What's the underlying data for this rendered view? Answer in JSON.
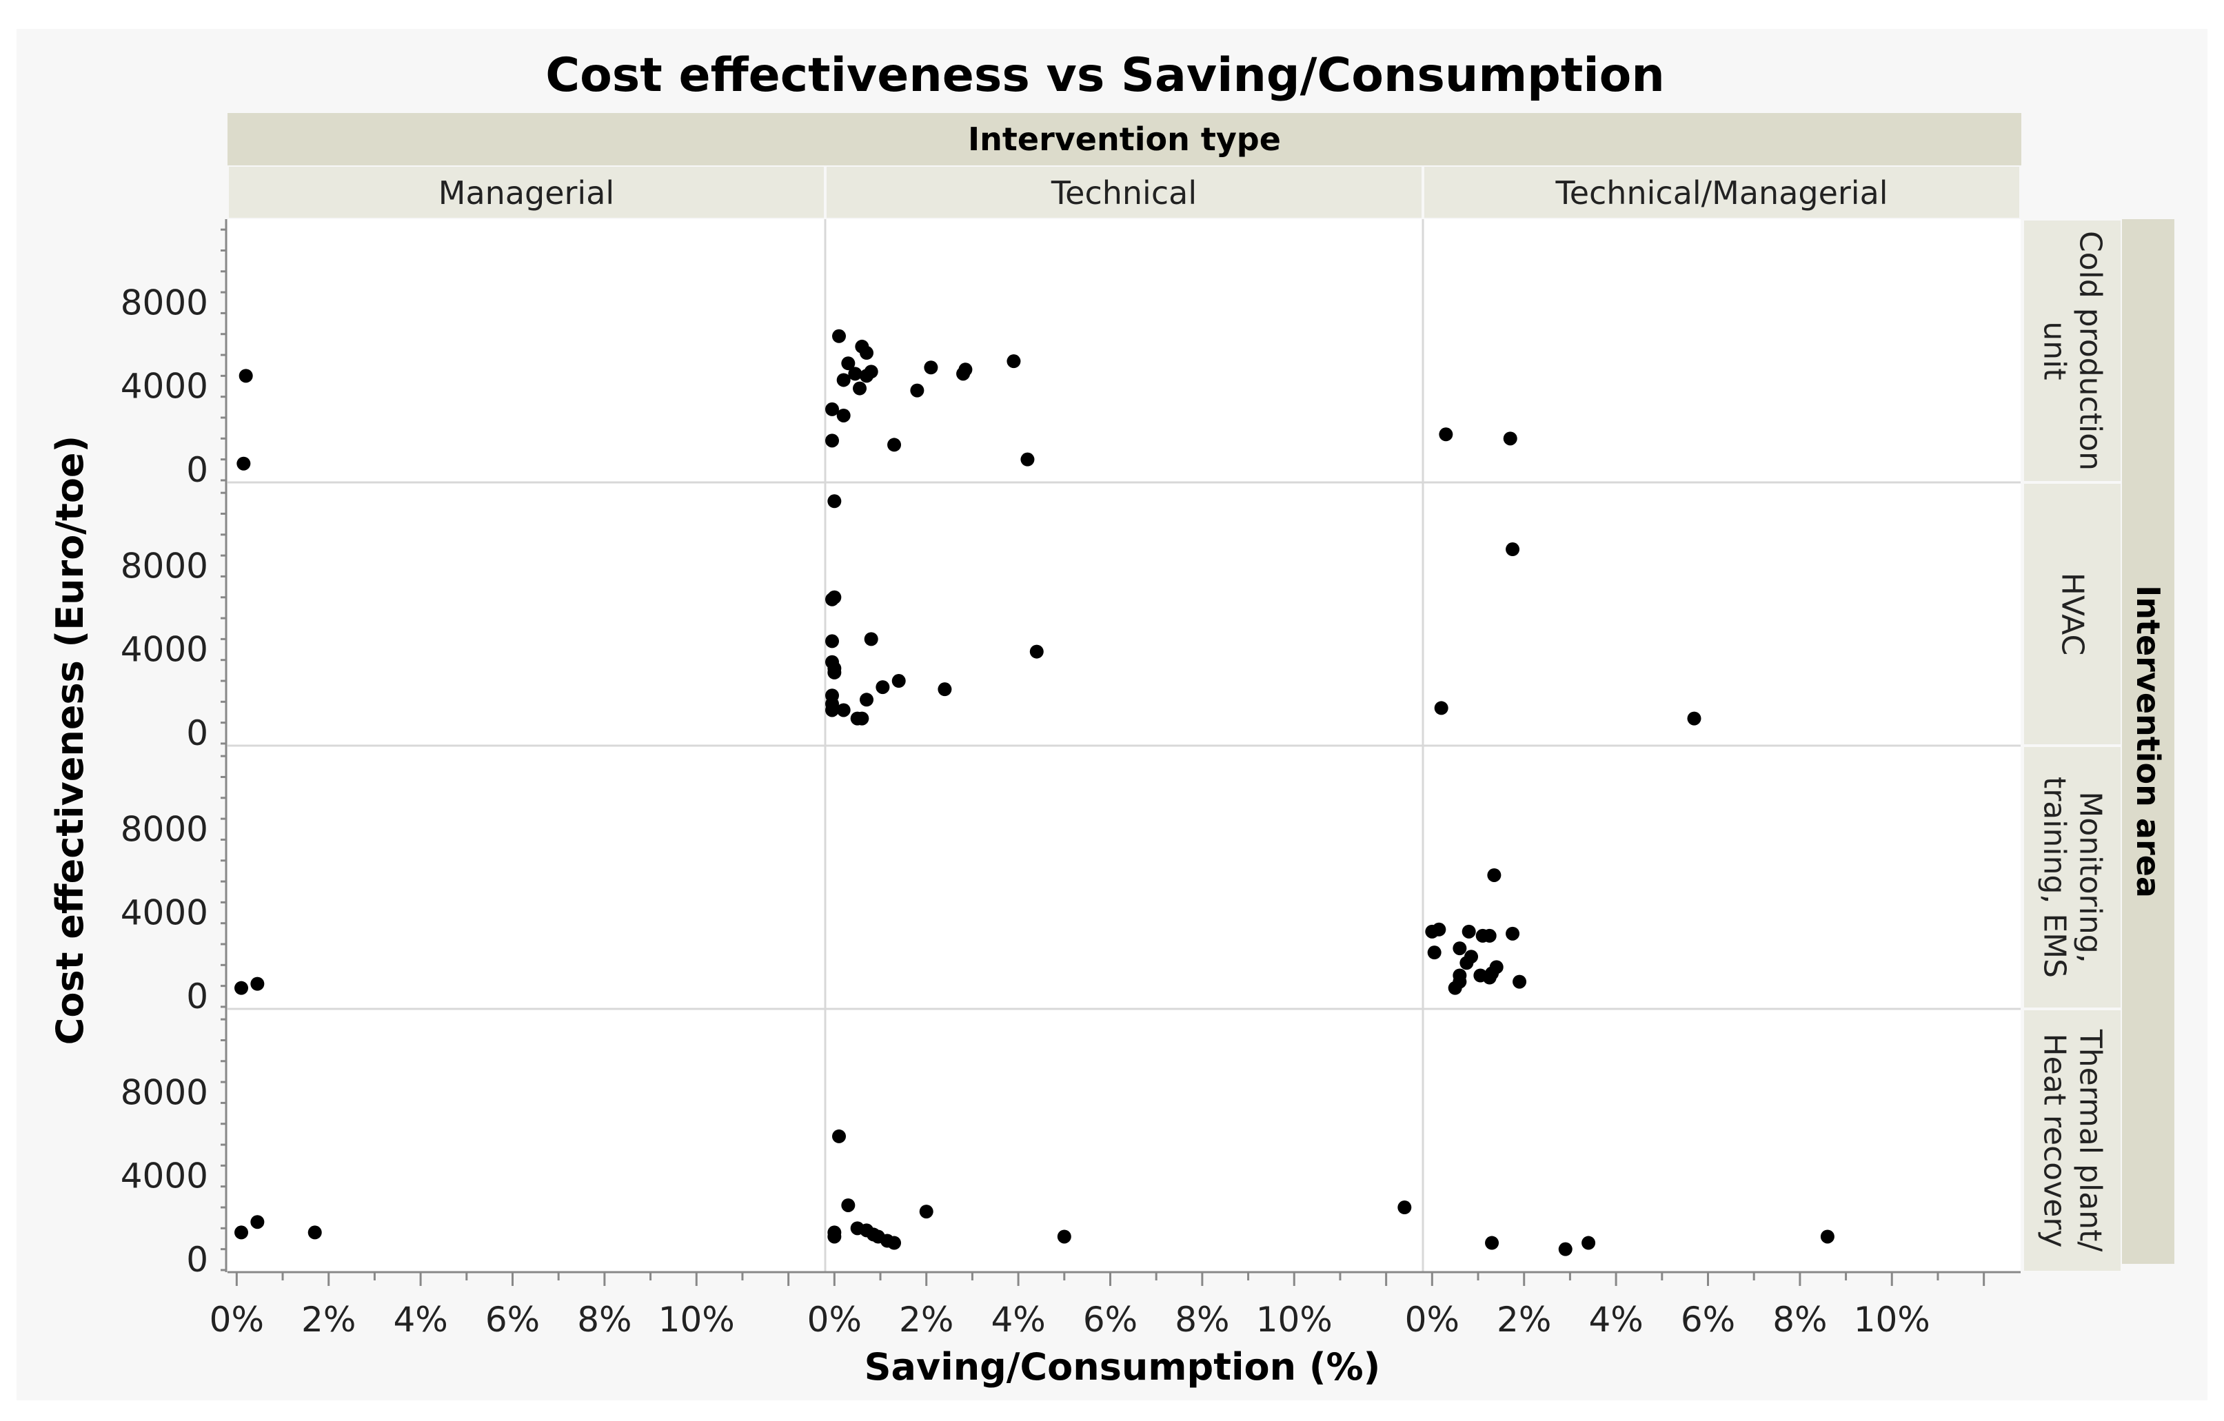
{
  "chart_data": {
    "type": "scatter",
    "title": "Cost effectiveness vs Saving/Consumption",
    "xlabel": "Saving/Consumption (%)",
    "ylabel": "Cost effectiveness (Euro/toe)",
    "column_group_label": "Intervention type",
    "row_group_label": "Intervention area",
    "columns": [
      "Managerial",
      "Technical",
      "Technical/Managerial"
    ],
    "rows": [
      "Cold production unit",
      "HVAC",
      "Monitoring, training, EMS",
      "Thermal plant/ Heat recovery"
    ],
    "row_label_lines": [
      [
        "Cold production",
        "unit"
      ],
      [
        "HVAC"
      ],
      [
        "Monitoring,",
        "training, EMS"
      ],
      [
        "Thermal plant/",
        "Heat recovery"
      ]
    ],
    "xlim": [
      -0.2,
      12.8
    ],
    "ylim": [
      -600,
      12000
    ],
    "x_ticks": [
      0,
      2,
      4,
      6,
      8,
      10
    ],
    "x_tick_labels": [
      "0%",
      "2%",
      "4%",
      "6%",
      "8%",
      "10%"
    ],
    "y_ticks": [
      0,
      4000,
      8000
    ],
    "y_tick_labels": [
      "0",
      "4000",
      "8000"
    ],
    "points": [
      {
        "col": 0,
        "row": 0,
        "x": 0.2,
        "y": 4500
      },
      {
        "col": 0,
        "row": 0,
        "x": 0.15,
        "y": 300
      },
      {
        "col": 1,
        "row": 0,
        "x": 0.1,
        "y": 6400
      },
      {
        "col": 1,
        "row": 0,
        "x": 0.6,
        "y": 5900
      },
      {
        "col": 1,
        "row": 0,
        "x": 0.7,
        "y": 5600
      },
      {
        "col": 1,
        "row": 0,
        "x": 0.3,
        "y": 5100
      },
      {
        "col": 1,
        "row": 0,
        "x": 0.45,
        "y": 4600
      },
      {
        "col": 1,
        "row": 0,
        "x": 0.7,
        "y": 4500
      },
      {
        "col": 1,
        "row": 0,
        "x": 0.8,
        "y": 4700
      },
      {
        "col": 1,
        "row": 0,
        "x": 0.2,
        "y": 4300
      },
      {
        "col": 1,
        "row": 0,
        "x": 0.55,
        "y": 3900
      },
      {
        "col": 1,
        "row": 0,
        "x": 1.8,
        "y": 3800
      },
      {
        "col": 1,
        "row": 0,
        "x": 2.1,
        "y": 4900
      },
      {
        "col": 1,
        "row": 0,
        "x": 2.8,
        "y": 4600
      },
      {
        "col": 1,
        "row": 0,
        "x": 2.85,
        "y": 4800
      },
      {
        "col": 1,
        "row": 0,
        "x": 3.9,
        "y": 5200
      },
      {
        "col": 1,
        "row": 0,
        "x": -0.05,
        "y": 2900
      },
      {
        "col": 1,
        "row": 0,
        "x": 0.2,
        "y": 2600
      },
      {
        "col": 1,
        "row": 0,
        "x": -0.05,
        "y": 1400
      },
      {
        "col": 1,
        "row": 0,
        "x": 1.3,
        "y": 1200
      },
      {
        "col": 1,
        "row": 0,
        "x": 4.2,
        "y": 500
      },
      {
        "col": 2,
        "row": 0,
        "x": 0.3,
        "y": 1700
      },
      {
        "col": 2,
        "row": 0,
        "x": 1.7,
        "y": 1500
      },
      {
        "col": 1,
        "row": 1,
        "x": 0.0,
        "y": 11100
      },
      {
        "col": 1,
        "row": 1,
        "x": -0.05,
        "y": 6400
      },
      {
        "col": 1,
        "row": 1,
        "x": 0.0,
        "y": 6500
      },
      {
        "col": 1,
        "row": 1,
        "x": -0.05,
        "y": 4400
      },
      {
        "col": 1,
        "row": 1,
        "x": 0.8,
        "y": 4500
      },
      {
        "col": 1,
        "row": 1,
        "x": 4.4,
        "y": 3900
      },
      {
        "col": 1,
        "row": 1,
        "x": -0.05,
        "y": 3400
      },
      {
        "col": 1,
        "row": 1,
        "x": 0.0,
        "y": 3100
      },
      {
        "col": 1,
        "row": 1,
        "x": 0.0,
        "y": 2900
      },
      {
        "col": 1,
        "row": 1,
        "x": 1.4,
        "y": 2500
      },
      {
        "col": 1,
        "row": 1,
        "x": 1.05,
        "y": 2200
      },
      {
        "col": 1,
        "row": 1,
        "x": 2.4,
        "y": 2100
      },
      {
        "col": 1,
        "row": 1,
        "x": -0.05,
        "y": 1800
      },
      {
        "col": 1,
        "row": 1,
        "x": 0.7,
        "y": 1600
      },
      {
        "col": 1,
        "row": 1,
        "x": -0.05,
        "y": 1400
      },
      {
        "col": 1,
        "row": 1,
        "x": -0.05,
        "y": 1100
      },
      {
        "col": 1,
        "row": 1,
        "x": 0.2,
        "y": 1100
      },
      {
        "col": 1,
        "row": 1,
        "x": 0.5,
        "y": 700
      },
      {
        "col": 1,
        "row": 1,
        "x": 0.6,
        "y": 700
      },
      {
        "col": 2,
        "row": 1,
        "x": 1.75,
        "y": 8800
      },
      {
        "col": 2,
        "row": 1,
        "x": 0.2,
        "y": 1200
      },
      {
        "col": 2,
        "row": 1,
        "x": 5.7,
        "y": 700
      },
      {
        "col": 0,
        "row": 2,
        "x": 0.1,
        "y": 400
      },
      {
        "col": 0,
        "row": 2,
        "x": 0.45,
        "y": 600
      },
      {
        "col": 2,
        "row": 2,
        "x": 1.35,
        "y": 5800
      },
      {
        "col": 2,
        "row": 2,
        "x": 0.0,
        "y": 3100
      },
      {
        "col": 2,
        "row": 2,
        "x": 0.15,
        "y": 3200
      },
      {
        "col": 2,
        "row": 2,
        "x": 0.8,
        "y": 3100
      },
      {
        "col": 2,
        "row": 2,
        "x": 1.1,
        "y": 2900
      },
      {
        "col": 2,
        "row": 2,
        "x": 1.25,
        "y": 2900
      },
      {
        "col": 2,
        "row": 2,
        "x": 1.75,
        "y": 3000
      },
      {
        "col": 2,
        "row": 2,
        "x": 0.05,
        "y": 2100
      },
      {
        "col": 2,
        "row": 2,
        "x": 0.6,
        "y": 2300
      },
      {
        "col": 2,
        "row": 2,
        "x": 0.85,
        "y": 1900
      },
      {
        "col": 2,
        "row": 2,
        "x": 0.75,
        "y": 1600
      },
      {
        "col": 2,
        "row": 2,
        "x": 1.4,
        "y": 1400
      },
      {
        "col": 2,
        "row": 2,
        "x": 1.3,
        "y": 1100
      },
      {
        "col": 2,
        "row": 2,
        "x": 1.05,
        "y": 1000
      },
      {
        "col": 2,
        "row": 2,
        "x": 0.6,
        "y": 1000
      },
      {
        "col": 2,
        "row": 2,
        "x": 1.25,
        "y": 900
      },
      {
        "col": 2,
        "row": 2,
        "x": 0.6,
        "y": 700
      },
      {
        "col": 2,
        "row": 2,
        "x": 1.9,
        "y": 700
      },
      {
        "col": 2,
        "row": 2,
        "x": 0.5,
        "y": 400
      },
      {
        "col": 0,
        "row": 3,
        "x": 0.1,
        "y": 1300
      },
      {
        "col": 0,
        "row": 3,
        "x": 0.45,
        "y": 1800
      },
      {
        "col": 0,
        "row": 3,
        "x": 1.7,
        "y": 1300
      },
      {
        "col": 1,
        "row": 3,
        "x": 0.1,
        "y": 5900
      },
      {
        "col": 1,
        "row": 3,
        "x": 0.3,
        "y": 2600
      },
      {
        "col": 1,
        "row": 3,
        "x": 2.0,
        "y": 2300
      },
      {
        "col": 1,
        "row": 3,
        "x": 0.5,
        "y": 1500
      },
      {
        "col": 1,
        "row": 3,
        "x": 0.0,
        "y": 1300
      },
      {
        "col": 1,
        "row": 3,
        "x": 0.7,
        "y": 1400
      },
      {
        "col": 1,
        "row": 3,
        "x": 0.85,
        "y": 1200
      },
      {
        "col": 1,
        "row": 3,
        "x": 0.0,
        "y": 1100
      },
      {
        "col": 1,
        "row": 3,
        "x": 0.95,
        "y": 1100
      },
      {
        "col": 1,
        "row": 3,
        "x": 1.15,
        "y": 900
      },
      {
        "col": 1,
        "row": 3,
        "x": 1.3,
        "y": 800
      },
      {
        "col": 1,
        "row": 3,
        "x": 5.0,
        "y": 1100
      },
      {
        "col": 1,
        "row": 3,
        "x": 12.4,
        "y": 2500
      },
      {
        "col": 2,
        "row": 3,
        "x": 1.3,
        "y": 800
      },
      {
        "col": 2,
        "row": 3,
        "x": 2.9,
        "y": 500
      },
      {
        "col": 2,
        "row": 3,
        "x": 3.4,
        "y": 800
      },
      {
        "col": 2,
        "row": 3,
        "x": 8.6,
        "y": 1100
      }
    ]
  }
}
